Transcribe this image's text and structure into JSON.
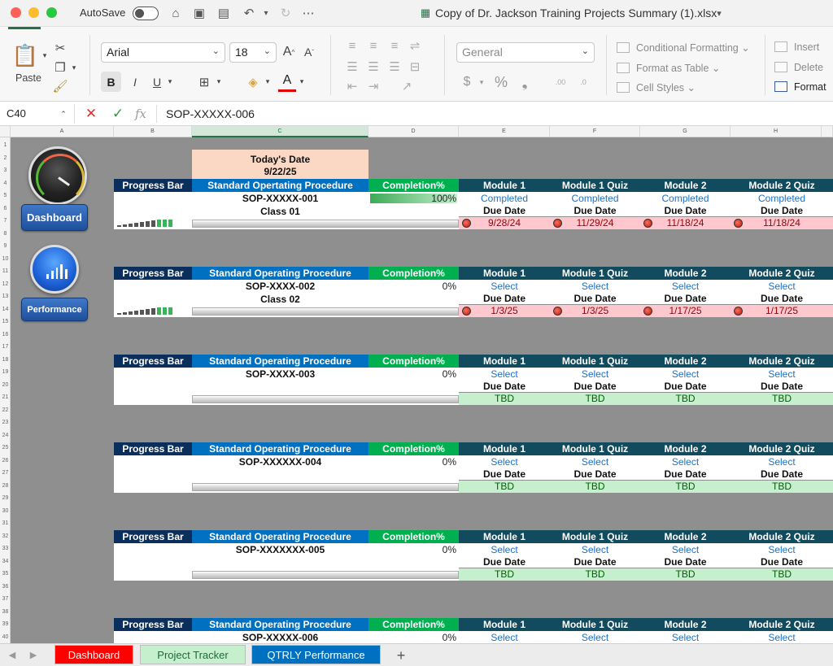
{
  "titlebar": {
    "autosave_label": "AutoSave",
    "filename": "Copy of Dr. Jackson Training Projects Summary (1).xlsx"
  },
  "ribbon": {
    "paste_label": "Paste",
    "font_name": "Arial",
    "font_size": "18",
    "number_format": "General",
    "styles": [
      "Conditional Formatting",
      "Format as Table",
      "Cell Styles"
    ],
    "cells": [
      "Insert",
      "Delete",
      "Format"
    ]
  },
  "formula_bar": {
    "cell_ref": "C40",
    "content": "SOP-XXXXX-006"
  },
  "columns": [
    "A",
    "B",
    "C",
    "D",
    "E",
    "F",
    "G",
    "H"
  ],
  "rows": [
    "1",
    "2",
    "3",
    "4",
    "5",
    "6",
    "7",
    "8",
    "9",
    "10",
    "11",
    "12",
    "13",
    "14",
    "15",
    "16",
    "17",
    "18",
    "19",
    "20",
    "21",
    "22",
    "23",
    "24",
    "25",
    "26",
    "27",
    "28",
    "29",
    "30",
    "31",
    "32",
    "33",
    "34",
    "35",
    "36",
    "37",
    "38",
    "39",
    "40"
  ],
  "sidebar": {
    "dashboard_label": "Dashboard",
    "performance_label": "Performance"
  },
  "todays_date": {
    "label": "Today's Date",
    "value": "9/22/25"
  },
  "colors": {
    "header_navy": "#0b2f5c",
    "header_blue": "#0070c0",
    "header_green": "#00b050",
    "header_teal": "#124a5e",
    "overdue_red": "#ffc7ce",
    "tbd_green": "#c6efce"
  },
  "headers": {
    "progress": "Progress Bar",
    "sop_1": "Standard Opertating Procedure",
    "sop": "Standard Operating Procedure",
    "completion": "Completion%",
    "modules": [
      "Module 1",
      "Module 1 Quiz",
      "Module 2",
      "Module 2 Quiz"
    ]
  },
  "due_date_label": "Due Date",
  "blocks": [
    {
      "sop": "SOP-XXXXX-001",
      "class": "Class 01",
      "completion": "100%",
      "completion_value": 100,
      "statuses": [
        "Completed",
        "Completed",
        "Completed",
        "Completed"
      ],
      "dates": [
        "9/28/24",
        "11/29/24",
        "11/18/24",
        "11/18/24"
      ],
      "overdue": true,
      "spark": [
        1,
        2,
        3,
        4,
        5,
        6,
        7,
        8,
        8,
        8
      ]
    },
    {
      "sop": "SOP-XXXX-002",
      "class": "Class 02",
      "completion": "0%",
      "completion_value": 0,
      "statuses": [
        "Select",
        "Select",
        "Select",
        "Select"
      ],
      "dates": [
        "1/3/25",
        "1/3/25",
        "1/17/25",
        "1/17/25"
      ],
      "overdue": true,
      "spark": [
        1,
        2,
        3,
        4,
        5,
        6,
        7,
        8,
        8,
        8
      ]
    },
    {
      "sop": "SOP-XXXX-003",
      "class": "",
      "completion": "0%",
      "completion_value": 0,
      "statuses": [
        "Select",
        "Select",
        "Select",
        "Select"
      ],
      "dates": [
        "TBD",
        "TBD",
        "TBD",
        "TBD"
      ],
      "overdue": false
    },
    {
      "sop": "SOP-XXXXXX-004",
      "class": "",
      "completion": "0%",
      "completion_value": 0,
      "statuses": [
        "Select",
        "Select",
        "Select",
        "Select"
      ],
      "dates": [
        "TBD",
        "TBD",
        "TBD",
        "TBD"
      ],
      "overdue": false
    },
    {
      "sop": "SOP-XXXXXXX-005",
      "class": "",
      "completion": "0%",
      "completion_value": 0,
      "statuses": [
        "Select",
        "Select",
        "Select",
        "Select"
      ],
      "dates": [
        "TBD",
        "TBD",
        "TBD",
        "TBD"
      ],
      "overdue": false
    },
    {
      "sop": "SOP-XXXXX-006",
      "class": "",
      "completion": "0%",
      "completion_value": 0,
      "statuses": [
        "Select",
        "Select",
        "Select",
        "Select"
      ],
      "dates": [],
      "overdue": false
    }
  ],
  "sheet_tabs": [
    {
      "label": "Dashboard",
      "bg": "#ff0000",
      "fg": "#ffffff"
    },
    {
      "label": "Project Tracker",
      "bg": "#c6efce",
      "fg": "#1e6b3c"
    },
    {
      "label": "QTRLY Performance",
      "bg": "#0070c0",
      "fg": "#ffffff"
    }
  ],
  "add_sheet": "+"
}
